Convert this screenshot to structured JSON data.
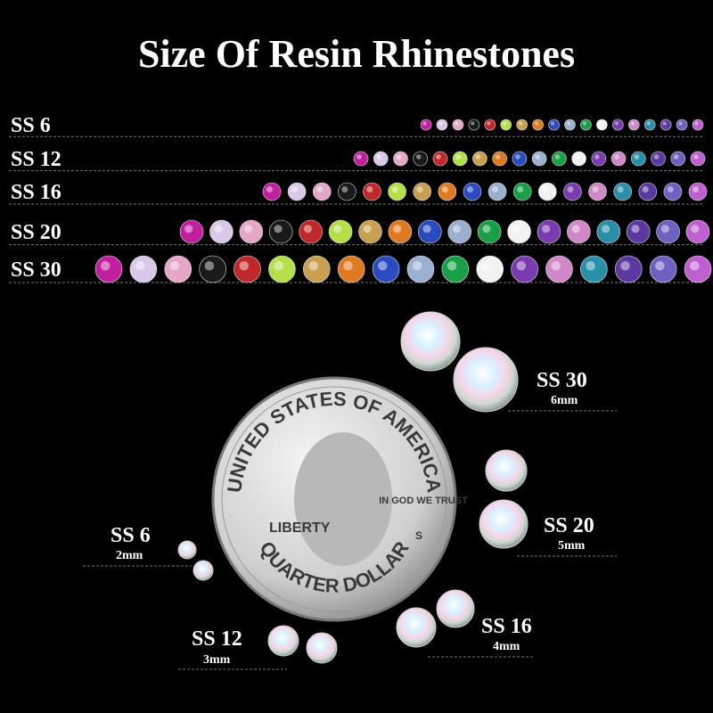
{
  "header": {
    "title": "Size Of Resin Rhinestones"
  },
  "rows": [
    {
      "label": "SS 6"
    },
    {
      "label": "SS 12"
    },
    {
      "label": "SS 16"
    },
    {
      "label": "SS 20"
    },
    {
      "label": "SS 30"
    }
  ],
  "coin": {
    "top": "UNITED STATES OF AMERICA",
    "bottom": "QUARTER DOLLAR",
    "left": "LIBERTY",
    "motto": "IN GOD WE TRUST",
    "mint": "S"
  },
  "sizes": [
    {
      "label": "SS 30",
      "mm": "6mm"
    },
    {
      "label": "SS 20",
      "mm": "5mm"
    },
    {
      "label": "SS 16",
      "mm": "4mm"
    },
    {
      "label": "SS 12",
      "mm": "3mm"
    },
    {
      "label": "SS 6",
      "mm": "2mm"
    }
  ]
}
